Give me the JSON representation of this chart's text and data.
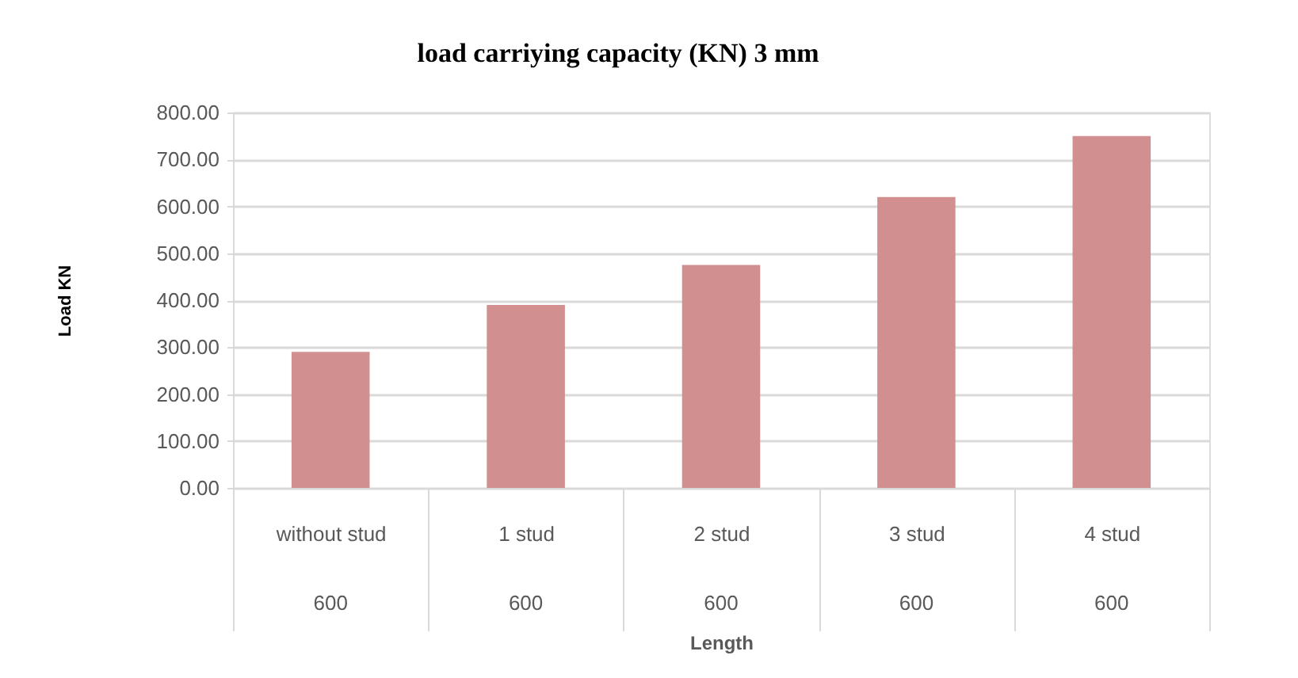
{
  "chart_data": {
    "type": "bar",
    "title": "load carriying capacity (KN) 3 mm",
    "xlabel": "Length",
    "ylabel": "Load  KN",
    "categories": [
      "without stud",
      "1 stud",
      "2 stud",
      "3 stud",
      "4 stud"
    ],
    "values": [
      290,
      390,
      475,
      620,
      750
    ],
    "color": "#d18f8f",
    "ylim": [
      0,
      800
    ],
    "yticks": [
      {
        "value": 0,
        "label": "0.00"
      },
      {
        "value": 100,
        "label": "100.00"
      },
      {
        "value": 200,
        "label": "200.00"
      },
      {
        "value": 300,
        "label": "300.00"
      },
      {
        "value": 400,
        "label": "400.00"
      },
      {
        "value": 500,
        "label": "500.00"
      },
      {
        "value": 600,
        "label": "600.00"
      },
      {
        "value": 700,
        "label": "700.00"
      },
      {
        "value": 800,
        "label": "800.00"
      }
    ],
    "grid": "y",
    "annotations": [
      "600",
      "600",
      "600",
      "600",
      "600"
    ]
  }
}
